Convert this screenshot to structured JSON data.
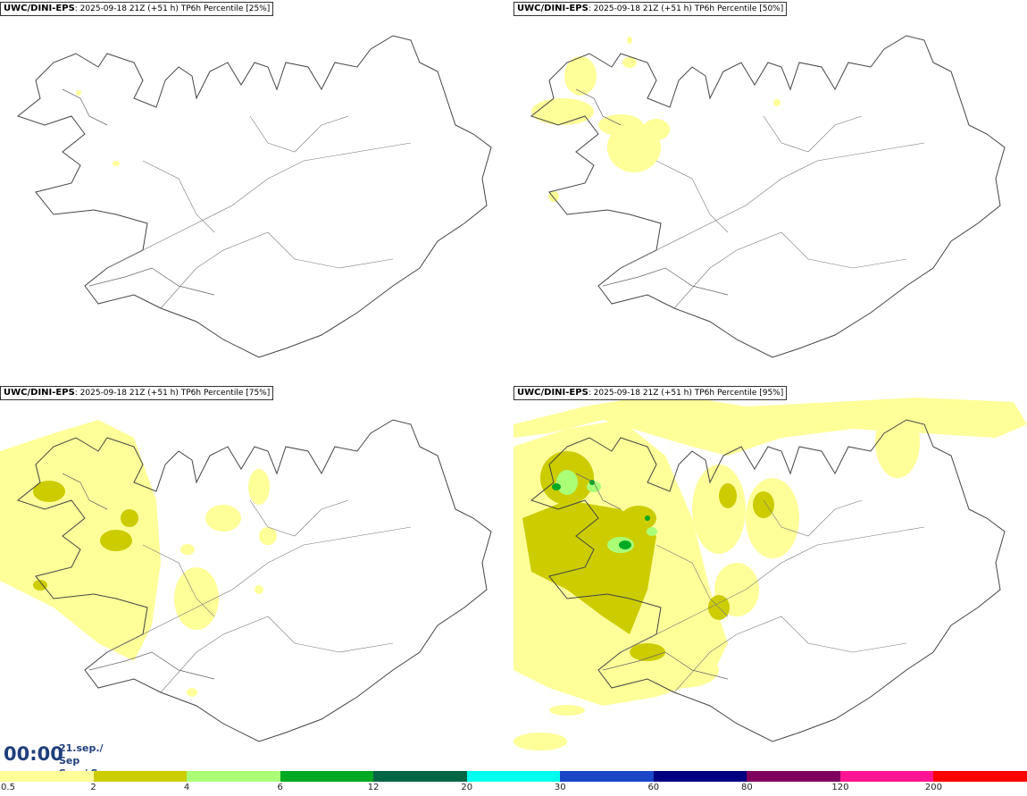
{
  "panels": [
    {
      "model": "UWC/DINI-EPS",
      "info": ": 2025-09-18 21Z (+51 h) TP6h Percentile [25%]"
    },
    {
      "model": "UWC/DINI-EPS",
      "info": ": 2025-09-18 21Z (+51 h) TP6h Percentile [50%]"
    },
    {
      "model": "UWC/DINI-EPS",
      "info": ": 2025-09-18 21Z (+51 h) TP6h Percentile [75%]"
    },
    {
      "model": "UWC/DINI-EPS",
      "info": ": 2025-09-18 21Z (+51 h) TP6h Percentile [95%]"
    }
  ],
  "time": {
    "clock": "00:00",
    "date": "21.sep./ Sep",
    "day": "Sun./ Sun"
  },
  "legend": {
    "colors": [
      "#ffff99",
      "#cccc00",
      "#aaff77",
      "#00aa22",
      "#006644",
      "#00ffee",
      "#1a46c8",
      "#000080",
      "#800060",
      "#ff1493",
      "#ff0000"
    ],
    "labels": [
      "0.5",
      "2",
      "4",
      "6",
      "12",
      "20",
      "30",
      "60",
      "80",
      "120",
      "200"
    ]
  }
}
